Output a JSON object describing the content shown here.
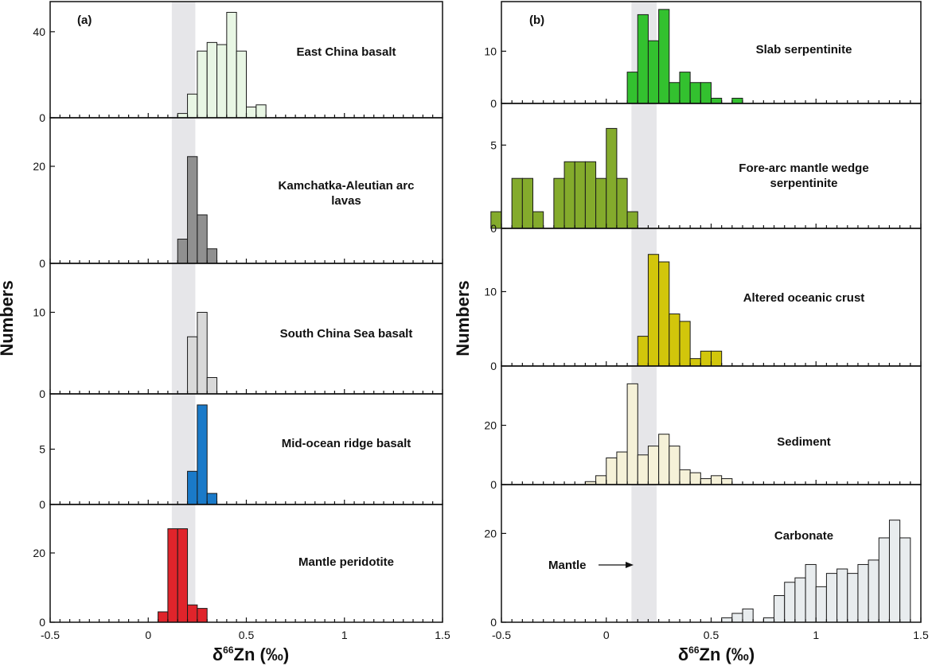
{
  "colors": {
    "mantle_band": "#e6e6e9",
    "east_china": "#e8f6e4",
    "kamchatka": "#909090",
    "south_china_sea": "#d9d9d9",
    "morb": "#1a7ac9",
    "mantle_peridotite": "#e0242b",
    "slab_serp": "#33c12f",
    "forearc": "#84ab2c",
    "aoc": "#d2c60b",
    "sediment": "#f5f1d8",
    "carbonate": "#e8ecee"
  },
  "chart_data": [
    {
      "type": "bar",
      "panel": "(a)",
      "xlabel_main": "δ",
      "xlabel_sup": "66",
      "xlabel_rest": "Zn (‰)",
      "ylabel": "Numbers",
      "xlim": [
        -0.5,
        1.5
      ],
      "xticks": [
        "-0.5",
        "0",
        "0.5",
        "1",
        "1.5"
      ],
      "mantle_band": [
        0.12,
        0.24
      ],
      "bin_width": 0.05,
      "subplots": [
        {
          "name": "East China basalt",
          "color_key": "east_china",
          "ylim": [
            0,
            54
          ],
          "yticks": [
            "0",
            "40"
          ],
          "bins": [
            0.15,
            0.2,
            0.25,
            0.3,
            0.35,
            0.4,
            0.45,
            0.5,
            0.55
          ],
          "values": [
            2,
            11,
            31,
            35,
            34,
            49,
            31,
            5,
            6
          ]
        },
        {
          "name": "Kamchatka-Aleutian arc lavas",
          "color_key": "kamchatka",
          "ylim": [
            0,
            30
          ],
          "yticks": [
            "0",
            "20"
          ],
          "bins": [
            0.15,
            0.2,
            0.25,
            0.3
          ],
          "values": [
            5,
            22,
            10,
            3
          ]
        },
        {
          "name": "South China Sea basalt",
          "color_key": "south_china_sea",
          "ylim": [
            0,
            16
          ],
          "yticks": [
            "0",
            "10"
          ],
          "bins": [
            0.2,
            0.25,
            0.3
          ],
          "values": [
            7,
            10,
            2
          ]
        },
        {
          "name": "Mid-ocean ridge basalt",
          "color_key": "morb",
          "ylim": [
            0,
            10
          ],
          "yticks": [
            "0",
            "5"
          ],
          "bins": [
            0.2,
            0.25,
            0.3
          ],
          "values": [
            3,
            9,
            1
          ]
        },
        {
          "name": "Mantle peridotite",
          "color_key": "mantle_peridotite",
          "ylim": [
            0,
            34
          ],
          "yticks": [
            "0",
            "20"
          ],
          "bins": [
            0.05,
            0.1,
            0.15,
            0.2,
            0.25
          ],
          "values": [
            3,
            27,
            27,
            5,
            4
          ]
        }
      ]
    },
    {
      "type": "bar",
      "panel": "(b)",
      "xlabel_main": "δ",
      "xlabel_sup": "66",
      "xlabel_rest": "Zn (‰)",
      "ylabel": "Numbers",
      "xlim": [
        -0.5,
        1.5
      ],
      "xticks": [
        "-0.5",
        "0",
        "0.5",
        "1",
        "1.5"
      ],
      "mantle_band": [
        0.12,
        0.24
      ],
      "bin_width": 0.05,
      "annotation": "Mantle",
      "subplots": [
        {
          "name": "Slab serpentinite",
          "color_key": "slab_serp",
          "ylim": [
            0,
            19.5
          ],
          "yticks": [
            "0",
            "10"
          ],
          "bins": [
            0.1,
            0.15,
            0.2,
            0.25,
            0.3,
            0.35,
            0.4,
            0.45,
            0.5,
            0.6
          ],
          "values": [
            6,
            17,
            12,
            18,
            4,
            6,
            4,
            4,
            1,
            1
          ]
        },
        {
          "name": "Fore-arc mantle wedge serpentinite",
          "color_key": "forearc",
          "ylim": [
            0,
            7.5
          ],
          "yticks": [
            "0",
            "5"
          ],
          "bins": [
            -0.55,
            -0.45,
            -0.4,
            -0.35,
            -0.25,
            -0.2,
            -0.15,
            -0.1,
            -0.05,
            0,
            0.05,
            0.1
          ],
          "values": [
            1,
            3,
            3,
            1,
            3,
            4,
            4,
            4,
            3,
            6,
            3,
            1
          ],
          "bin_starts": [
            -0.55,
            -0.5,
            -0.45,
            -0.4,
            -0.35,
            -0.3,
            -0.25,
            -0.2,
            -0.15,
            -0.1,
            -0.05,
            0,
            0.05,
            0.1
          ]
        },
        {
          "name": "Altered oceanic crust",
          "color_key": "aoc",
          "ylim": [
            0,
            18.5
          ],
          "yticks": [
            "0",
            "10"
          ],
          "bins": [
            0.15,
            0.2,
            0.25,
            0.3,
            0.35,
            0.4,
            0.45,
            0.5
          ],
          "values": [
            4,
            15,
            14,
            7,
            6,
            1,
            2,
            2
          ]
        },
        {
          "name": "Sediment",
          "color_key": "sediment",
          "ylim": [
            0,
            40
          ],
          "yticks": [
            "0",
            "20"
          ],
          "bins": [
            -0.1,
            -0.05,
            0,
            0.05,
            0.1,
            0.15,
            0.2,
            0.25,
            0.3,
            0.35,
            0.4,
            0.45,
            0.5,
            0.55
          ],
          "values": [
            1,
            3,
            9,
            11,
            34,
            10,
            13,
            17,
            13,
            5,
            4,
            2,
            3,
            2
          ]
        },
        {
          "name": "Carbonate",
          "color_key": "carbonate",
          "ylim": [
            0,
            31
          ],
          "yticks": [
            "0",
            "20"
          ],
          "bins": [
            0.55,
            0.6,
            0.65,
            0.75,
            0.8,
            0.85,
            0.9,
            0.95,
            1.0,
            1.05,
            1.1,
            1.15,
            1.2,
            1.25,
            1.3,
            1.35,
            1.4
          ],
          "values": [
            1,
            2,
            3,
            1,
            6,
            9,
            10,
            13,
            8,
            11,
            12,
            11,
            13,
            14,
            19,
            23,
            19
          ]
        }
      ]
    }
  ]
}
